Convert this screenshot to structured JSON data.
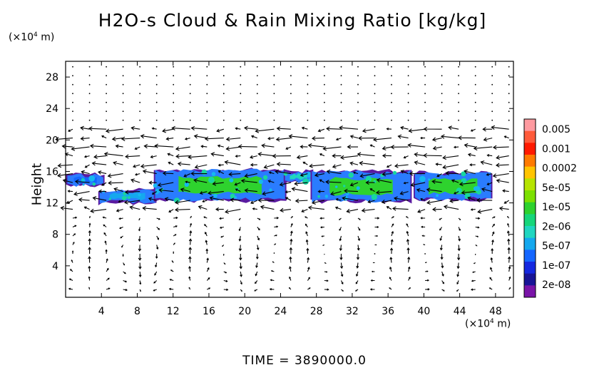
{
  "chart_data": {
    "type": "heatmap",
    "title": "H2O-s Cloud & Rain Mixing Ratio [kg/kg]",
    "ylabel": "Height",
    "x_unit": {
      "prefix": "(×10",
      "exp": "4",
      "suffix": " m)"
    },
    "y_unit": {
      "prefix": "(×10",
      "exp": "4",
      "suffix": " m)"
    },
    "xlim": [
      0,
      50
    ],
    "ylim": [
      0,
      30
    ],
    "x_ticks": [
      4,
      8,
      12,
      16,
      20,
      24,
      28,
      32,
      36,
      40,
      44,
      48
    ],
    "y_ticks": [
      4,
      8,
      12,
      16,
      20,
      24,
      28
    ],
    "time_label": "TIME = 3890000.0",
    "colorbar": {
      "labels": [
        "0.005",
        "0.001",
        "0.0002",
        "5e-05",
        "1e-05",
        "2e-06",
        "5e-07",
        "1e-07",
        "2e-08"
      ],
      "colors": [
        "#ff9aa0",
        "#ff5a3a",
        "#ff1a00",
        "#ff7a00",
        "#ffc400",
        "#b6e400",
        "#7ce000",
        "#2ed22e",
        "#16d67a",
        "#20d6c0",
        "#14a8ee",
        "#1466ff",
        "#1428e0",
        "#181496",
        "#7a14a8"
      ]
    },
    "cloud_regions": [
      {
        "x": [
          0.2,
          4.2
        ],
        "y": [
          14.2,
          15.6
        ],
        "level": "1e-07"
      },
      {
        "x": [
          3.8,
          10.0
        ],
        "y": [
          12.0,
          13.6
        ],
        "level": "5e-07"
      },
      {
        "x": [
          10.0,
          24.5
        ],
        "y": [
          12.3,
          16.2
        ],
        "level": "1e-05"
      },
      {
        "x": [
          24.5,
          27.5
        ],
        "y": [
          14.6,
          16.0
        ],
        "level": "2e-06"
      },
      {
        "x": [
          27.5,
          38.5
        ],
        "y": [
          12.2,
          16.0
        ],
        "level": "1e-05"
      },
      {
        "x": [
          39.0,
          47.5
        ],
        "y": [
          12.4,
          15.8
        ],
        "level": "1e-05"
      }
    ],
    "wind_field": "quiver (velocity vectors)"
  }
}
